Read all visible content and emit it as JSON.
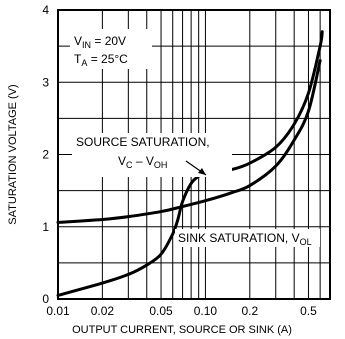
{
  "chart_data": {
    "type": "line",
    "title": "",
    "xlabel": "OUTPUT CURRENT, SOURCE OR SINK (A)",
    "ylabel": "SATURATION VOLTAGE (V)",
    "x_scale": "log",
    "xlim": [
      0.01,
      0.7
    ],
    "ylim": [
      0,
      4
    ],
    "grid": true,
    "x_ticks": [
      0.01,
      0.02,
      0.05,
      0.1,
      0.2,
      0.5
    ],
    "x_tick_labels": [
      "0.01",
      "0.02",
      "0.05",
      "0.10",
      "0.2",
      "0.5"
    ],
    "y_ticks": [
      0,
      1,
      2,
      3,
      4
    ],
    "y_tick_labels": [
      "0",
      "1",
      "2",
      "3",
      "4"
    ],
    "conditions": {
      "vin": "V",
      "vin_sub": "IN",
      "vin_val": " = 20V",
      "ta": "T",
      "ta_sub": "A",
      "ta_val": " = 25°C"
    },
    "series": [
      {
        "name": "SOURCE SATURATION",
        "x": [
          0.01,
          0.02,
          0.03,
          0.05,
          0.07,
          0.1,
          0.15,
          0.2,
          0.3,
          0.4,
          0.5,
          0.6
        ],
        "y": [
          1.06,
          1.1,
          1.14,
          1.21,
          1.28,
          1.36,
          1.47,
          1.57,
          1.84,
          2.2,
          2.6,
          3.3
        ]
      },
      {
        "name": "SINK SATURATION",
        "x": [
          0.01,
          0.02,
          0.03,
          0.04,
          0.05,
          0.06,
          0.065,
          0.07,
          0.08,
          0.09,
          0.1,
          0.12,
          0.15,
          0.2,
          0.3,
          0.4,
          0.5,
          0.6,
          0.62
        ],
        "y": [
          0.05,
          0.22,
          0.34,
          0.47,
          0.62,
          0.9,
          1.1,
          1.35,
          1.6,
          1.7,
          1.74,
          1.76,
          1.79,
          1.88,
          2.1,
          2.42,
          2.85,
          3.5,
          3.7
        ]
      }
    ],
    "annotations": {
      "source_line1": "SOURCE SATURATION,",
      "source_v1": "V",
      "source_v1_sub": "C",
      "source_mid": " – V",
      "source_v2_sub": "OH",
      "sink_main": "SINK SATURATION, V",
      "sink_sub": "OL"
    }
  }
}
